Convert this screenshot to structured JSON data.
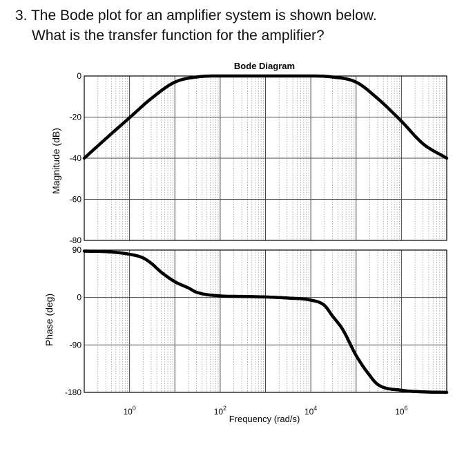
{
  "question": {
    "line1": "3. The Bode plot for an amplifier system is shown below.",
    "line2": "What is the transfer function for the amplifier?"
  },
  "chart_data": [
    {
      "type": "line",
      "title": "Bode Diagram",
      "xlabel": "Frequency (rad/s)",
      "ylabel": "Magnitude (dB)",
      "xscale": "log",
      "xlim": [
        0.1,
        10000000
      ],
      "ylim": [
        -80,
        0
      ],
      "yticks": [
        0,
        -20,
        -40,
        -60,
        -80
      ],
      "grid": true,
      "series": [
        {
          "x": [
            0.1,
            0.3,
            1,
            3,
            10,
            30,
            100,
            1000,
            10000,
            30000,
            100000,
            300000,
            1000000,
            3000000,
            10000000
          ],
          "y": [
            -40,
            -30.5,
            -20.3,
            -11,
            -3,
            -0.5,
            0,
            0,
            0,
            -0.5,
            -3,
            -11,
            -22,
            -33,
            -40
          ]
        }
      ]
    },
    {
      "type": "line",
      "xlabel": "Frequency (rad/s)",
      "ylabel": "Phase (deg)",
      "xscale": "log",
      "xlim": [
        0.1,
        10000000
      ],
      "ylim": [
        -180,
        90
      ],
      "yticks": [
        90,
        0,
        -90,
        -180
      ],
      "xtick_labels": [
        {
          "base": "10",
          "exp": "0"
        },
        {
          "base": "10",
          "exp": "2"
        },
        {
          "base": "10",
          "exp": "4"
        },
        {
          "base": "10",
          "exp": "6"
        }
      ],
      "grid": true,
      "series": [
        {
          "x": [
            0.1,
            0.3,
            1,
            2,
            3,
            5,
            10,
            20,
            30,
            100,
            300,
            1000,
            3000,
            10000,
            20000,
            30000,
            50000,
            100000,
            200000,
            300000,
            1000000,
            3000000,
            10000000
          ],
          "y": [
            88,
            87,
            82,
            75,
            65,
            48,
            30,
            18,
            10,
            3,
            2,
            1,
            -1,
            -5,
            -15,
            -35,
            -60,
            -110,
            -148,
            -165,
            -176,
            -179,
            -180
          ]
        }
      ]
    }
  ]
}
